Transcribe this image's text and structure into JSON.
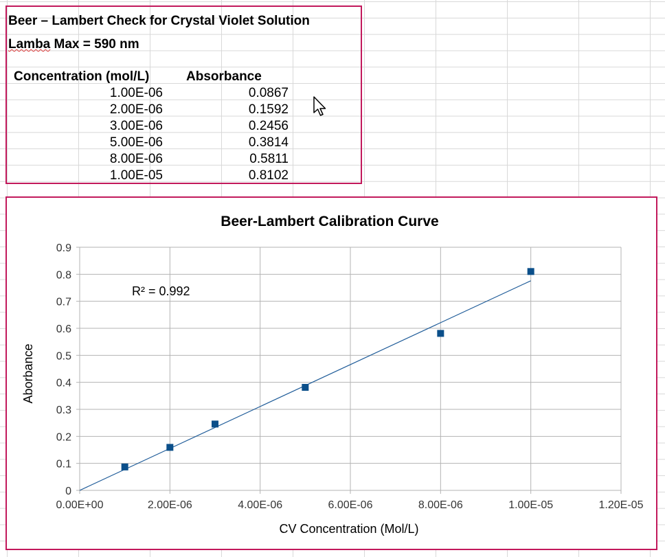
{
  "sheet": {
    "title": "Beer – Lambert Check for Crystal Violet Solution",
    "subtitle_word": "Lamba",
    "subtitle_rest": " Max = 590 nm",
    "col_headers": [
      "Concentration (mol/L)",
      "Absorbance"
    ],
    "rows": [
      [
        "1.00E-06",
        "0.0867"
      ],
      [
        "2.00E-06",
        "0.1592"
      ],
      [
        "3.00E-06",
        "0.2456"
      ],
      [
        "5.00E-06",
        "0.3814"
      ],
      [
        "8.00E-06",
        "0.5811"
      ],
      [
        "1.00E-05",
        "0.8102"
      ]
    ]
  },
  "chart_data": {
    "type": "scatter",
    "title": "Beer-Lambert Calibration Curve",
    "xlabel": "CV Concentration (Mol/L)",
    "ylabel": "Aborbance",
    "xlim": [
      0,
      1.2e-05
    ],
    "ylim": [
      0,
      0.9
    ],
    "x_ticks": [
      "0.00E+00",
      "2.00E-06",
      "4.00E-06",
      "6.00E-06",
      "8.00E-06",
      "1.00E-05",
      "1.20E-05"
    ],
    "y_ticks": [
      "0",
      "0.1",
      "0.2",
      "0.3",
      "0.4",
      "0.5",
      "0.6",
      "0.7",
      "0.8",
      "0.9"
    ],
    "grid": true,
    "series": [
      {
        "x": [
          1e-06,
          2e-06,
          3e-06,
          5e-06,
          8e-06,
          1e-05
        ],
        "y": [
          0.0867,
          0.1592,
          0.2456,
          0.3814,
          0.5811,
          0.8102
        ],
        "color": "#0b4f8a",
        "marker": "square"
      }
    ],
    "trendline": {
      "type": "linear",
      "x": [
        0,
        1e-05
      ],
      "y": [
        0,
        0.776
      ],
      "color": "#1f5c99"
    },
    "annotation": "R² = 0.992"
  }
}
